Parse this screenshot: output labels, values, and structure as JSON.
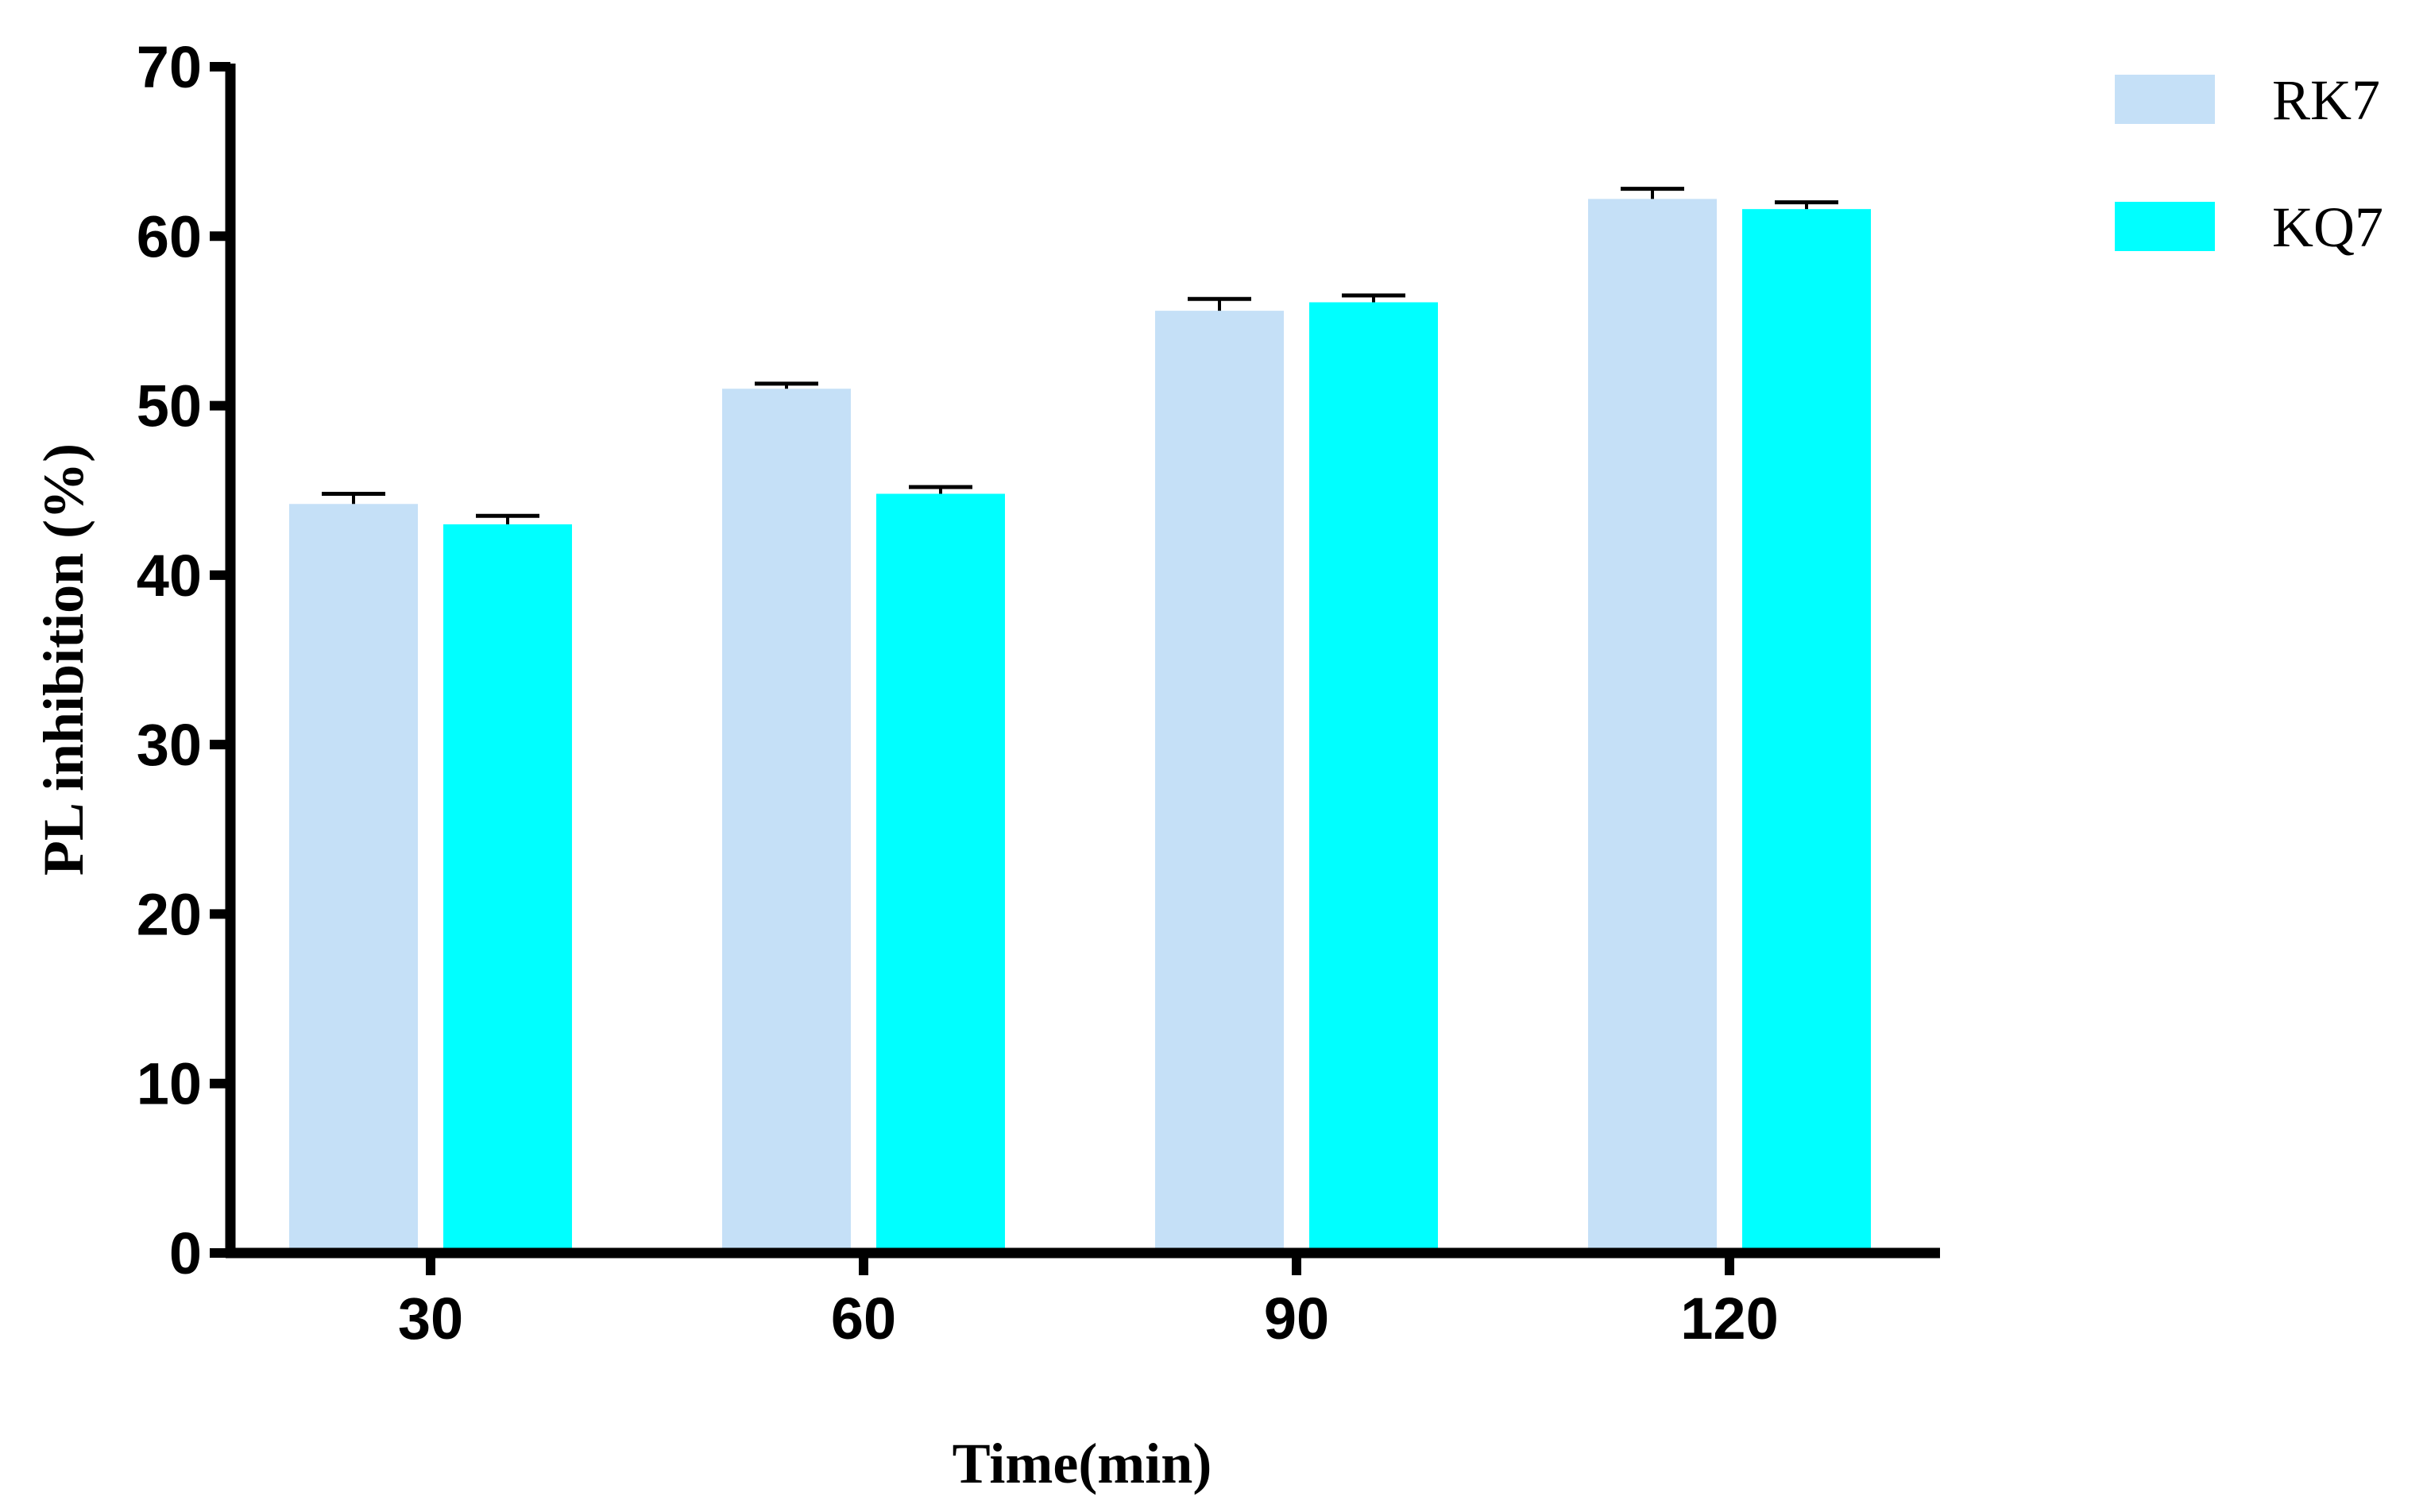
{
  "chart_data": {
    "type": "bar",
    "title": "",
    "xlabel": "Time(min)",
    "ylabel": "PL inhibition (%)",
    "categories": [
      "30",
      "60",
      "90",
      "120"
    ],
    "series": [
      {
        "name": "RK7",
        "color": "#c5e0f7",
        "values": [
          44.2,
          51.0,
          55.6,
          62.2
        ],
        "errors": [
          0.6,
          0.3,
          0.7,
          0.6
        ]
      },
      {
        "name": "KQ7",
        "color": "#00ffff",
        "values": [
          43.0,
          44.8,
          56.1,
          61.6
        ],
        "errors": [
          0.5,
          0.4,
          0.4,
          0.4
        ]
      }
    ],
    "ylim": [
      0,
      70
    ],
    "yticks": [
      0,
      10,
      20,
      30,
      40,
      50,
      60,
      70
    ],
    "grid": false,
    "legend_position": "top-right",
    "axis_color": "#000000",
    "error_bar_color": "#000000"
  }
}
